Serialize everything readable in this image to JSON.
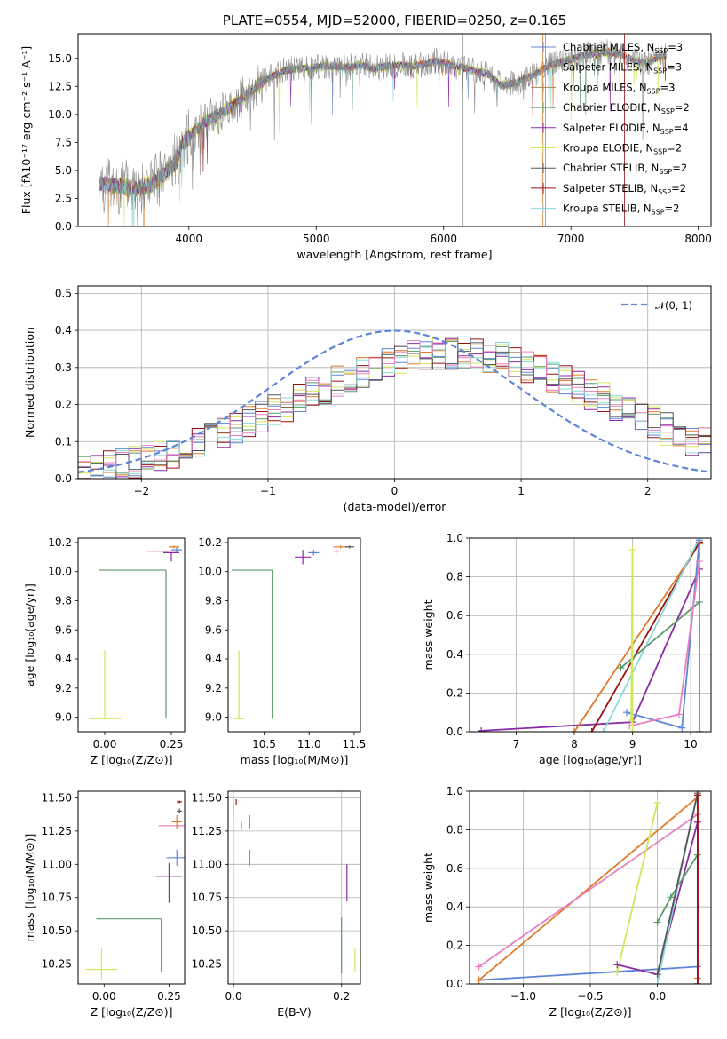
{
  "colors": {
    "blue": "#5e86d4",
    "orange": "#e07a28",
    "olive": "#a88a4c",
    "green": "#5a9a6a",
    "purple": "#8a2aa6",
    "lime": "#cfe85a",
    "darkgray": "#555555",
    "darkred": "#9a1010",
    "cyan": "#8ad8d8",
    "pink": "#e880c0",
    "gray": "#808080"
  },
  "chart_data": [
    {
      "id": "spectrum",
      "type": "line",
      "title": "PLATE=0554, MJD=52000, FIBERID=0250, z=0.165",
      "xlabel": "wavelength [Angstrom, rest frame]",
      "ylabel": "Flux [fλ10⁻¹⁷ erg cm⁻² s⁻¹ A⁻¹]",
      "xlim": [
        3130,
        8100
      ],
      "ylim": [
        0,
        17.2
      ],
      "xticks": [
        "4000",
        "5000",
        "6000",
        "7000",
        "8000"
      ],
      "yticks": [
        "0.0",
        "2.5",
        "5.0",
        "7.5",
        "10.0",
        "12.5",
        "15.0"
      ],
      "legend_position": "top-right",
      "legend": [
        {
          "label": "Chabrier MILES, N",
          "sub": "SSP",
          "tail": "=3",
          "color": "blue"
        },
        {
          "label": "Salpeter MILES, N",
          "sub": "SSP",
          "tail": "=3",
          "color": "orange"
        },
        {
          "label": "Kroupa MILES, N",
          "sub": "SSP",
          "tail": "=3",
          "color": "olive"
        },
        {
          "label": "Chabrier ELODIE, N",
          "sub": "SSP",
          "tail": "=2",
          "color": "green"
        },
        {
          "label": "Salpeter ELODIE, N",
          "sub": "SSP",
          "tail": "=4",
          "color": "purple"
        },
        {
          "label": "Kroupa ELODIE, N",
          "sub": "SSP",
          "tail": "=2",
          "color": "lime"
        },
        {
          "label": "Chabrier STELIB, N",
          "sub": "SSP",
          "tail": "=2",
          "color": "darkgray"
        },
        {
          "label": "Salpeter STELIB, N",
          "sub": "SSP",
          "tail": "=2",
          "color": "darkred"
        },
        {
          "label": "Kroupa STELIB, N",
          "sub": "SSP",
          "tail": "=2",
          "color": "cyan"
        }
      ],
      "continuum": [
        [
          3300,
          3.8
        ],
        [
          3450,
          3.6
        ],
        [
          3600,
          3.4
        ],
        [
          3700,
          3.7
        ],
        [
          3800,
          4.6
        ],
        [
          3900,
          5.8
        ],
        [
          3950,
          7.4
        ],
        [
          4050,
          8.6
        ],
        [
          4150,
          9.5
        ],
        [
          4250,
          10.1
        ],
        [
          4350,
          10.8
        ],
        [
          4450,
          11.7
        ],
        [
          4550,
          12.7
        ],
        [
          4650,
          13.4
        ],
        [
          4750,
          13.9
        ],
        [
          4850,
          14.1
        ],
        [
          4950,
          14.1
        ],
        [
          5050,
          14.3
        ],
        [
          5150,
          14.3
        ],
        [
          5250,
          14.2
        ],
        [
          5350,
          14.4
        ],
        [
          5450,
          14.1
        ],
        [
          5550,
          14.3
        ],
        [
          5650,
          14.4
        ],
        [
          5750,
          14.3
        ],
        [
          5850,
          14.5
        ],
        [
          5950,
          14.8
        ],
        [
          6050,
          14.4
        ],
        [
          6150,
          14.2
        ],
        [
          6250,
          13.8
        ],
        [
          6350,
          13.6
        ],
        [
          6450,
          12.6
        ],
        [
          6500,
          12.6
        ],
        [
          6600,
          13.0
        ],
        [
          6700,
          13.5
        ],
        [
          6800,
          14.2
        ],
        [
          6900,
          14.6
        ],
        [
          7000,
          14.9
        ],
        [
          7100,
          15.3
        ],
        [
          7200,
          15.4
        ],
        [
          7300,
          15.6
        ],
        [
          7400,
          15.3
        ],
        [
          7500,
          14.8
        ],
        [
          7600,
          14.6
        ],
        [
          7700,
          15.1
        ],
        [
          7750,
          15.3
        ]
      ],
      "series_noise": [
        {
          "color": "blue",
          "amp": 0.35,
          "seed": 1
        },
        {
          "color": "orange",
          "amp": 0.4,
          "seed": 2
        },
        {
          "color": "green",
          "amp": 0.35,
          "seed": 3
        },
        {
          "color": "lime",
          "amp": 0.5,
          "seed": 4
        },
        {
          "color": "darkred",
          "amp": 0.35,
          "seed": 5
        },
        {
          "color": "purple",
          "amp": 0.3,
          "seed": 6
        },
        {
          "color": "cyan",
          "amp": 0.35,
          "seed": 7
        },
        {
          "color": "gray",
          "amp": 1.2,
          "seed": 8
        }
      ],
      "vertical_lines": [
        {
          "x": 6150,
          "color": "gray"
        },
        {
          "x": 6780,
          "color": "orange"
        },
        {
          "x": 6800,
          "color": "olive"
        },
        {
          "x": 7420,
          "color": "darkred"
        }
      ]
    },
    {
      "id": "residuals",
      "type": "histogram",
      "xlabel": "(data-model)/error",
      "ylabel": "Normed distribution",
      "xlim": [
        -2.5,
        2.5
      ],
      "ylim": [
        0,
        0.52
      ],
      "xticks": [
        "−2",
        "−1",
        "0",
        "1",
        "2"
      ],
      "yticks": [
        "0.0",
        "0.1",
        "0.2",
        "0.3",
        "0.4",
        "0.5"
      ],
      "grid": true,
      "legend_position": "top-right",
      "legend": [
        {
          "label": "𝒩(0, 1)",
          "color": "blue",
          "style": "dashed"
        }
      ],
      "bin_width": 0.1,
      "series": [
        {
          "color": "green",
          "seed": 11
        },
        {
          "color": "orange",
          "seed": 12
        },
        {
          "color": "purple",
          "seed": 13
        },
        {
          "color": "lime",
          "seed": 14
        },
        {
          "color": "darkred",
          "seed": 15
        },
        {
          "color": "blue",
          "seed": 16
        },
        {
          "color": "cyan",
          "seed": 17
        },
        {
          "color": "pink",
          "seed": 18
        },
        {
          "color": "darkgray",
          "seed": 19
        }
      ]
    },
    {
      "id": "age_vs_z",
      "type": "errorbar",
      "xlabel": "Z [log₁₀(Z/Z⊙)]",
      "ylabel": "age  [log₁₀(age/yr)]",
      "xlim": [
        -0.1,
        0.3
      ],
      "ylim": [
        8.9,
        10.23
      ],
      "xticks": [
        "0.00",
        "0.25"
      ],
      "yticks": [
        "9.0",
        "9.2",
        "9.4",
        "9.6",
        "9.8",
        "10.0",
        "10.2"
      ],
      "points": [
        {
          "x": 0.0,
          "y": 8.99,
          "xerr": 0.06,
          "yerr": [
            0,
            0.47
          ],
          "color": "lime"
        },
        {
          "x": 0.23,
          "y": 10.01,
          "xerr": [
            0.25,
            0
          ],
          "yerr": [
            1.02,
            0
          ],
          "color": "green"
        },
        {
          "x": 0.2,
          "y": 10.14,
          "xerr": 0.04,
          "yerr": 0,
          "color": "pink"
        },
        {
          "x": 0.25,
          "y": 10.13,
          "xerr": 0.03,
          "yerr": [
            0.06,
            0
          ],
          "color": "purple"
        },
        {
          "x": 0.27,
          "y": 10.15,
          "xerr": 0.02,
          "yerr": 0.02,
          "color": "blue"
        },
        {
          "x": 0.26,
          "y": 10.17,
          "xerr": 0.02,
          "yerr": 0.01,
          "color": "orange"
        }
      ]
    },
    {
      "id": "age_vs_mass",
      "type": "errorbar",
      "xlabel": "mass [log₁₀(M/M⊙)]",
      "ylabel": "",
      "xlim": [
        10.1,
        11.57
      ],
      "ylim": [
        8.9,
        10.23
      ],
      "xticks": [
        "10.5",
        "11.0",
        "11.5"
      ],
      "yticks": [
        "9.0",
        "9.2",
        "9.4",
        "9.6",
        "9.8",
        "10.0",
        "10.2"
      ],
      "points": [
        {
          "x": 10.22,
          "y": 8.99,
          "xerr": 0.06,
          "yerr": [
            0,
            0.47
          ],
          "color": "lime"
        },
        {
          "x": 10.59,
          "y": 10.01,
          "xerr": [
            0.45,
            0
          ],
          "yerr": [
            1.02,
            0
          ],
          "color": "green"
        },
        {
          "x": 10.93,
          "y": 10.1,
          "xerr": 0.09,
          "yerr": 0.05,
          "color": "purple"
        },
        {
          "x": 11.05,
          "y": 10.13,
          "xerr": 0.06,
          "yerr": 0.02,
          "color": "blue"
        },
        {
          "x": 11.3,
          "y": 10.14,
          "xerr": 0.03,
          "yerr": 0.02,
          "color": "pink"
        },
        {
          "x": 11.35,
          "y": 10.17,
          "xerr": 0.08,
          "yerr": 0.01,
          "color": "orange"
        },
        {
          "x": 11.45,
          "y": 10.17,
          "xerr": 0.05,
          "yerr": 0.01,
          "color": "darkgray"
        }
      ]
    },
    {
      "id": "massweight_vs_age",
      "type": "line",
      "xlabel": "age  [log₁₀(age/yr)]",
      "ylabel": "mass weight",
      "xlim": [
        6.2,
        10.35
      ],
      "ylim": [
        0,
        1
      ],
      "xticks": [
        "7",
        "8",
        "9",
        "10"
      ],
      "yticks": [
        "0.0",
        "0.2",
        "0.4",
        "0.6",
        "0.8",
        "1.0"
      ],
      "grid": true,
      "series": [
        {
          "color": "purple",
          "x": [
            6.4,
            9.0,
            10.15,
            10.15
          ],
          "y": [
            0.005,
            0.05,
            0.84,
            0.0
          ]
        },
        {
          "color": "orange",
          "x": [
            8.0,
            10.15,
            10.15
          ],
          "y": [
            0.0,
            0.97,
            0.0
          ]
        },
        {
          "color": "darkred",
          "x": [
            8.3,
            10.15
          ],
          "y": [
            0.0,
            0.98
          ]
        },
        {
          "color": "cyan",
          "x": [
            8.5,
            10.15
          ],
          "y": [
            0.0,
            1.0
          ]
        },
        {
          "color": "green",
          "x": [
            8.8,
            10.15
          ],
          "y": [
            0.33,
            0.67
          ]
        },
        {
          "color": "blue",
          "x": [
            8.9,
            9.85,
            10.15
          ],
          "y": [
            0.1,
            0.02,
            0.99
          ]
        },
        {
          "color": "pink",
          "x": [
            8.95,
            9.8,
            10.15
          ],
          "y": [
            0.03,
            0.09,
            0.88
          ]
        },
        {
          "color": "lime",
          "x": [
            8.98,
            9.0,
            9.0
          ],
          "y": [
            0.06,
            0.94,
            0.0
          ]
        }
      ]
    },
    {
      "id": "mass_vs_z",
      "type": "errorbar",
      "xlabel": "Z [log₁₀(Z/Z⊙)]",
      "ylabel": "mass [log₁₀(M/M⊙)]",
      "xlim": [
        -0.1,
        0.31
      ],
      "ylim": [
        10.1,
        11.55
      ],
      "xticks": [
        "0.00",
        "0.25"
      ],
      "yticks": [
        "10.25",
        "10.50",
        "10.75",
        "11.00",
        "11.25",
        "11.50"
      ],
      "points": [
        {
          "x": -0.01,
          "y": 10.21,
          "xerr": 0.06,
          "yerr": [
            0.08,
            0.16
          ],
          "color": "lime"
        },
        {
          "x": 0.22,
          "y": 10.59,
          "xerr": [
            0.25,
            0
          ],
          "yerr": [
            0.4,
            0
          ],
          "color": "green"
        },
        {
          "x": 0.25,
          "y": 10.91,
          "xerr": 0.05,
          "yerr": [
            0.2,
            0.1
          ],
          "color": "purple"
        },
        {
          "x": 0.28,
          "y": 11.05,
          "xerr": 0.04,
          "yerr": 0.06,
          "color": "blue"
        },
        {
          "x": 0.26,
          "y": 11.29,
          "xerr": 0.05,
          "yerr": 0,
          "color": "pink"
        },
        {
          "x": 0.28,
          "y": 11.32,
          "xerr": 0.02,
          "yerr": 0.05,
          "color": "orange"
        },
        {
          "x": 0.29,
          "y": 11.4,
          "xerr": 0.01,
          "yerr": 0.02,
          "color": "darkgray"
        },
        {
          "x": 0.29,
          "y": 11.47,
          "xerr": 0.01,
          "yerr": 0.01,
          "color": "darkred"
        }
      ]
    },
    {
      "id": "mass_vs_ebv",
      "type": "errorbar",
      "xlabel": "E(B-V)",
      "ylabel": "",
      "xlim": [
        -0.01,
        0.235
      ],
      "ylim": [
        10.1,
        11.55
      ],
      "xticks": [
        "0.0",
        "0.2"
      ],
      "yticks": [
        "10.25",
        "10.50",
        "10.75",
        "11.00",
        "11.25",
        "11.50"
      ],
      "grid": true,
      "points": [
        {
          "x": 0.0,
          "y": 11.4,
          "xerr": 0,
          "yerr": 0.05,
          "color": "cyan"
        },
        {
          "x": 0.005,
          "y": 11.47,
          "xerr": 0,
          "yerr": 0.02,
          "color": "darkred"
        },
        {
          "x": 0.015,
          "y": 11.29,
          "xerr": 0,
          "yerr": 0.03,
          "color": "pink"
        },
        {
          "x": 0.03,
          "y": 11.05,
          "xerr": 0,
          "yerr": 0.06,
          "color": "blue"
        },
        {
          "x": 0.03,
          "y": 11.32,
          "xerr": 0,
          "yerr": 0.05,
          "color": "orange"
        },
        {
          "x": 0.2,
          "y": 10.4,
          "xerr": 0,
          "yerr": [
            0.22,
            0.2
          ],
          "color": "green"
        },
        {
          "x": 0.21,
          "y": 10.9,
          "xerr": 0,
          "yerr": [
            0.18,
            0.1
          ],
          "color": "purple"
        },
        {
          "x": 0.225,
          "y": 10.25,
          "xerr": 0,
          "yerr": [
            0.06,
            0.12
          ],
          "color": "lime"
        }
      ]
    },
    {
      "id": "massweight_vs_z",
      "type": "line",
      "xlabel": "Z [log₁₀(Z/Z⊙)]",
      "ylabel": "mass weight",
      "xlim": [
        -1.4,
        0.4
      ],
      "ylim": [
        0,
        1
      ],
      "xticks": [
        "−1.0",
        "−0.5",
        "0.0"
      ],
      "yticks": [
        "0.0",
        "0.2",
        "0.4",
        "0.6",
        "0.8",
        "1.0"
      ],
      "grid": true,
      "series": [
        {
          "color": "blue",
          "x": [
            -1.33,
            0.3
          ],
          "y": [
            0.02,
            0.09
          ]
        },
        {
          "color": "orange",
          "x": [
            -1.33,
            0.3,
            0.3
          ],
          "y": [
            0.02,
            0.97,
            0.03
          ]
        },
        {
          "color": "pink",
          "x": [
            -1.33,
            0.3
          ],
          "y": [
            0.09,
            0.88
          ]
        },
        {
          "color": "lime",
          "x": [
            -0.3,
            0.0
          ],
          "y": [
            0.06,
            0.94
          ]
        },
        {
          "color": "purple",
          "x": [
            -0.3,
            0.0,
            0.3,
            0.3
          ],
          "y": [
            0.1,
            0.05,
            0.84,
            0.0
          ]
        },
        {
          "color": "green",
          "x": [
            0.0,
            0.1,
            0.3
          ],
          "y": [
            0.32,
            0.45,
            0.67
          ]
        },
        {
          "color": "cyan",
          "x": [
            0.0,
            0.3
          ],
          "y": [
            0.0,
            1.0
          ]
        },
        {
          "color": "darkgray",
          "x": [
            0.0,
            0.3
          ],
          "y": [
            0.05,
            0.99
          ]
        },
        {
          "color": "darkred",
          "x": [
            0.3,
            0.3
          ],
          "y": [
            0.0,
            0.98
          ]
        }
      ]
    }
  ]
}
